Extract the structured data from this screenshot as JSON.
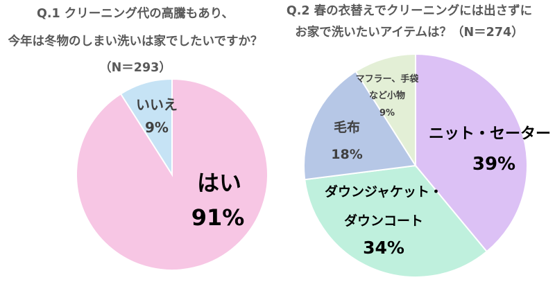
{
  "chart_data": [
    {
      "type": "pie",
      "title_lines": [
        "Q.1 クリーニング代の高騰もあり、",
        "今年は冬物のしまい洗いは家でしたいですか？",
        "（N＝293）"
      ],
      "slices": [
        {
          "label": "はい",
          "value": 91,
          "value_label": "91%",
          "color": "#f7c6e4"
        },
        {
          "label": "いいえ",
          "value": 9,
          "value_label": "9%",
          "color": "#c6e3f5"
        }
      ]
    },
    {
      "type": "pie",
      "title_lines": [
        "Q.2 春の衣替えでクリーニングには出さずに",
        "お家で洗いたいアイテムは？（N＝274）"
      ],
      "slices": [
        {
          "label": "ニット・セーター",
          "value": 39,
          "value_label": "39%",
          "color": "#dcc1f5"
        },
        {
          "label": "ダウンジャケット・ダウンコート",
          "label_lines": [
            "ダウンジャケット・",
            "ダウンコート"
          ],
          "value": 34,
          "value_label": "34%",
          "color": "#bff0dd"
        },
        {
          "label": "毛布",
          "value": 18,
          "value_label": "18%",
          "color": "#b6c7e6"
        },
        {
          "label": "マフラー、手袋など小物",
          "label_lines": [
            "マフラー、手袋",
            "など小物"
          ],
          "value": 9,
          "value_label": "9%",
          "color": "#e3efd6"
        }
      ]
    }
  ]
}
